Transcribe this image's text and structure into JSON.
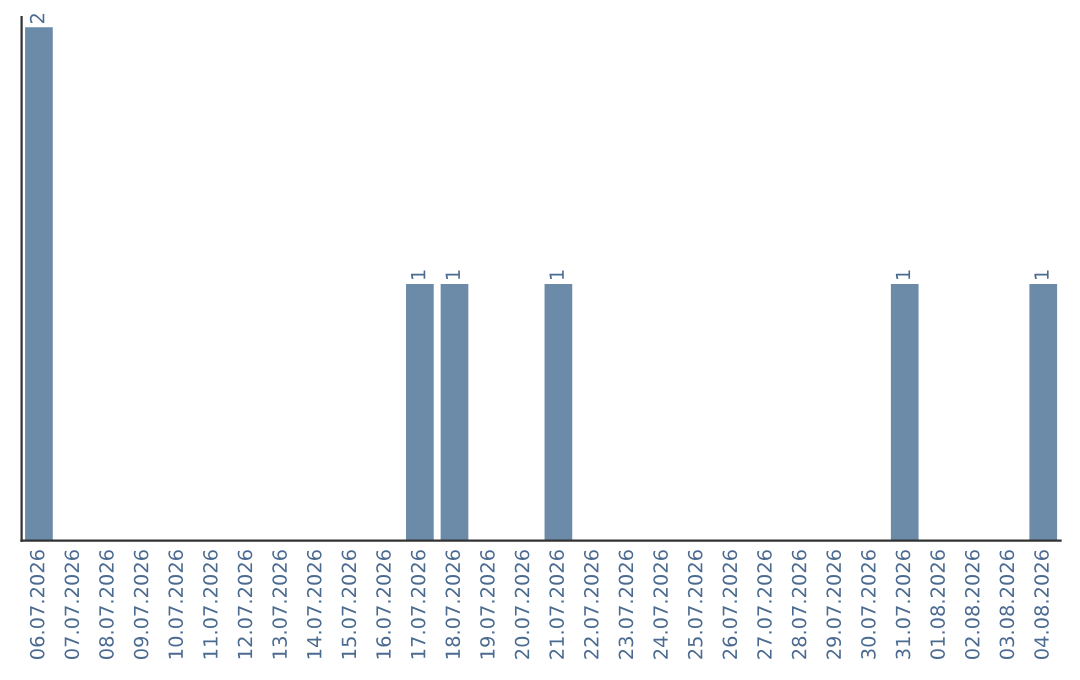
{
  "chart_data": {
    "type": "bar",
    "categories": [
      "06.07.2026",
      "07.07.2026",
      "08.07.2026",
      "09.07.2026",
      "10.07.2026",
      "11.07.2026",
      "12.07.2026",
      "13.07.2026",
      "14.07.2026",
      "15.07.2026",
      "16.07.2026",
      "17.07.2026",
      "18.07.2026",
      "19.07.2026",
      "20.07.2026",
      "21.07.2026",
      "22.07.2026",
      "23.07.2026",
      "24.07.2026",
      "25.07.2026",
      "26.07.2026",
      "27.07.2026",
      "28.07.2026",
      "29.07.2026",
      "30.07.2026",
      "31.07.2026",
      "01.08.2026",
      "02.08.2026",
      "03.08.2026",
      "04.08.2026"
    ],
    "values": [
      2,
      0,
      0,
      0,
      0,
      0,
      0,
      0,
      0,
      0,
      0,
      1,
      1,
      0,
      0,
      1,
      0,
      0,
      0,
      0,
      0,
      0,
      0,
      0,
      0,
      1,
      0,
      0,
      0,
      1
    ],
    "value_labels": [
      "2",
      null,
      null,
      null,
      null,
      null,
      null,
      null,
      null,
      null,
      null,
      "1",
      "1",
      null,
      null,
      "1",
      null,
      null,
      null,
      null,
      null,
      null,
      null,
      null,
      null,
      "1",
      null,
      null,
      null,
      "1"
    ],
    "color": "#6b8ba8",
    "tick_labels": "x",
    "grid": false,
    "legend": false
  }
}
